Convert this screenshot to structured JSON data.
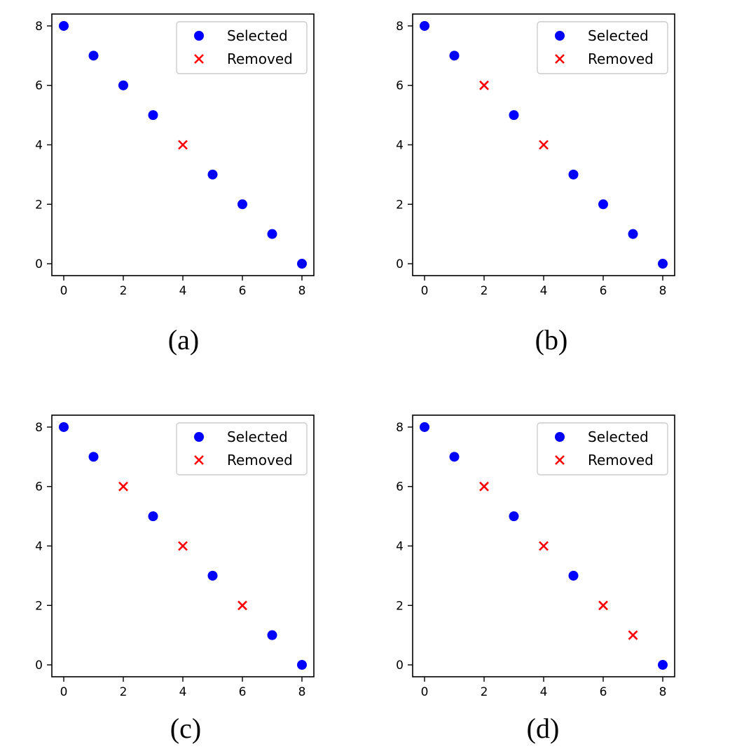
{
  "colors": {
    "selected": "#0000ff",
    "removed": "#ff0000",
    "axis": "#000000",
    "legend_border": "#cccccc"
  },
  "legend": {
    "selected_label": "Selected",
    "removed_label": "Removed",
    "placement": "top-right"
  },
  "chart_data": [
    {
      "type": "scatter",
      "caption": "(a)",
      "xlim": [
        -0.4,
        8.4
      ],
      "ylim": [
        -0.4,
        8.4
      ],
      "xticks": [
        0,
        2,
        4,
        6,
        8
      ],
      "yticks": [
        0,
        2,
        4,
        6,
        8
      ],
      "xtick_labels": [
        "0",
        "2",
        "4",
        "6",
        "8"
      ],
      "ytick_labels": [
        "0",
        "2",
        "4",
        "6",
        "8"
      ],
      "series": [
        {
          "name": "Selected",
          "marker": "circle",
          "x": [
            0,
            1,
            2,
            3,
            5,
            6,
            7,
            8
          ],
          "y": [
            8,
            7,
            6,
            5,
            3,
            2,
            1,
            0
          ]
        },
        {
          "name": "Removed",
          "marker": "x",
          "x": [
            4
          ],
          "y": [
            4
          ]
        }
      ]
    },
    {
      "type": "scatter",
      "caption": "(b)",
      "xlim": [
        -0.4,
        8.4
      ],
      "ylim": [
        -0.4,
        8.4
      ],
      "xticks": [
        0,
        2,
        4,
        6,
        8
      ],
      "yticks": [
        0,
        2,
        4,
        6,
        8
      ],
      "xtick_labels": [
        "0",
        "2",
        "4",
        "6",
        "8"
      ],
      "ytick_labels": [
        "0",
        "2",
        "4",
        "6",
        "8"
      ],
      "series": [
        {
          "name": "Selected",
          "marker": "circle",
          "x": [
            0,
            1,
            3,
            5,
            6,
            7,
            8
          ],
          "y": [
            8,
            7,
            5,
            3,
            2,
            1,
            0
          ]
        },
        {
          "name": "Removed",
          "marker": "x",
          "x": [
            2,
            4
          ],
          "y": [
            6,
            4
          ]
        }
      ]
    },
    {
      "type": "scatter",
      "caption": "(c)",
      "xlim": [
        -0.4,
        8.4
      ],
      "ylim": [
        -0.4,
        8.4
      ],
      "xticks": [
        0,
        2,
        4,
        6,
        8
      ],
      "yticks": [
        0,
        2,
        4,
        6,
        8
      ],
      "xtick_labels": [
        "0",
        "2",
        "4",
        "6",
        "8"
      ],
      "ytick_labels": [
        "0",
        "2",
        "4",
        "6",
        "8"
      ],
      "series": [
        {
          "name": "Selected",
          "marker": "circle",
          "x": [
            0,
            1,
            3,
            5,
            7,
            8
          ],
          "y": [
            8,
            7,
            5,
            3,
            1,
            0
          ]
        },
        {
          "name": "Removed",
          "marker": "x",
          "x": [
            2,
            4,
            6
          ],
          "y": [
            6,
            4,
            2
          ]
        }
      ]
    },
    {
      "type": "scatter",
      "caption": "(d)",
      "xlim": [
        -0.4,
        8.4
      ],
      "ylim": [
        -0.4,
        8.4
      ],
      "xticks": [
        0,
        2,
        4,
        6,
        8
      ],
      "yticks": [
        0,
        2,
        4,
        6,
        8
      ],
      "xtick_labels": [
        "0",
        "2",
        "4",
        "6",
        "8"
      ],
      "ytick_labels": [
        "0",
        "2",
        "4",
        "6",
        "8"
      ],
      "series": [
        {
          "name": "Selected",
          "marker": "circle",
          "x": [
            0,
            1,
            3,
            5,
            8
          ],
          "y": [
            8,
            7,
            5,
            3,
            0
          ]
        },
        {
          "name": "Removed",
          "marker": "x",
          "x": [
            2,
            4,
            6,
            7
          ],
          "y": [
            6,
            4,
            2,
            1
          ]
        }
      ]
    }
  ]
}
